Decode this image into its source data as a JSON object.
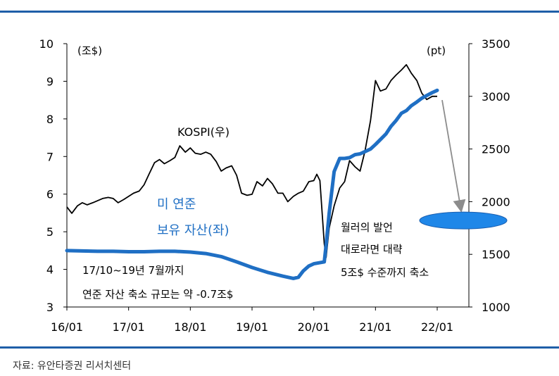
{
  "source": "자료: 유안타증권 리서치센터",
  "chart_data": {
    "type": "line",
    "x_ticks": [
      "16/01",
      "17/01",
      "18/01",
      "19/01",
      "20/01",
      "21/01",
      "22/01"
    ],
    "y_left": {
      "label": "(조$)",
      "ylim": [
        3,
        10
      ],
      "ticks": [
        3,
        4,
        5,
        6,
        7,
        8,
        9,
        10
      ]
    },
    "y_right": {
      "label": "(pt)",
      "ylim": [
        1000,
        3500
      ],
      "ticks": [
        1000,
        1500,
        2000,
        2500,
        3000,
        3500
      ]
    },
    "grid": false,
    "series": [
      {
        "name": "KOSPI(우)",
        "axis": "right",
        "color": "#000000",
        "x": [
          2016.0,
          2016.08,
          2016.17,
          2016.25,
          2016.33,
          2016.42,
          2016.5,
          2016.58,
          2016.67,
          2016.75,
          2016.83,
          2016.92,
          2017.0,
          2017.08,
          2017.17,
          2017.25,
          2017.33,
          2017.42,
          2017.5,
          2017.58,
          2017.67,
          2017.75,
          2017.83,
          2017.92,
          2018.0,
          2018.08,
          2018.17,
          2018.25,
          2018.33,
          2018.42,
          2018.5,
          2018.58,
          2018.67,
          2018.75,
          2018.83,
          2018.92,
          2019.0,
          2019.08,
          2019.17,
          2019.25,
          2019.33,
          2019.42,
          2019.5,
          2019.58,
          2019.67,
          2019.75,
          2019.83,
          2019.92,
          2020.0,
          2020.05,
          2020.1,
          2020.17,
          2020.2,
          2020.25,
          2020.33,
          2020.42,
          2020.5,
          2020.58,
          2020.67,
          2020.75,
          2020.83,
          2020.92,
          2021.0,
          2021.08,
          2021.17,
          2021.25,
          2021.33,
          2021.42,
          2021.5,
          2021.58,
          2021.67,
          2021.75,
          2021.83,
          2021.92,
          2022.0
        ],
        "values": [
          1950,
          1890,
          1960,
          1990,
          1970,
          1990,
          2010,
          2030,
          2040,
          2030,
          1990,
          2020,
          2050,
          2080,
          2100,
          2160,
          2260,
          2370,
          2400,
          2360,
          2390,
          2420,
          2530,
          2470,
          2510,
          2460,
          2450,
          2470,
          2450,
          2380,
          2290,
          2320,
          2340,
          2250,
          2080,
          2060,
          2070,
          2190,
          2150,
          2220,
          2170,
          2080,
          2080,
          2000,
          2050,
          2080,
          2100,
          2190,
          2200,
          2260,
          2200,
          1600,
          1470,
          1750,
          1960,
          2130,
          2190,
          2390,
          2330,
          2290,
          2480,
          2770,
          3150,
          3050,
          3070,
          3150,
          3200,
          3250,
          3300,
          3220,
          3150,
          3030,
          2970,
          3000,
          3000
        ]
      },
      {
        "name": "미 연준 보유 자산(좌)",
        "axis": "left",
        "color": "#1f6fc4",
        "x": [
          2016.0,
          2016.25,
          2016.5,
          2016.75,
          2017.0,
          2017.25,
          2017.5,
          2017.75,
          2018.0,
          2018.25,
          2018.5,
          2018.75,
          2019.0,
          2019.25,
          2019.5,
          2019.67,
          2019.75,
          2019.83,
          2019.92,
          2020.0,
          2020.17,
          2020.2,
          2020.25,
          2020.33,
          2020.42,
          2020.5,
          2020.58,
          2020.67,
          2020.75,
          2020.83,
          2020.92,
          2021.0,
          2021.08,
          2021.17,
          2021.25,
          2021.33,
          2021.42,
          2021.5,
          2021.58,
          2021.67,
          2021.75,
          2021.83,
          2021.92,
          2022.0
        ],
        "values": [
          4.5,
          4.49,
          4.48,
          4.48,
          4.47,
          4.47,
          4.48,
          4.48,
          4.46,
          4.42,
          4.34,
          4.2,
          4.05,
          3.92,
          3.82,
          3.76,
          3.79,
          3.96,
          4.09,
          4.15,
          4.2,
          4.65,
          5.5,
          6.6,
          6.95,
          6.95,
          6.97,
          7.05,
          7.07,
          7.13,
          7.2,
          7.32,
          7.45,
          7.6,
          7.8,
          7.95,
          8.15,
          8.22,
          8.35,
          8.45,
          8.55,
          8.62,
          8.7,
          8.76
        ]
      }
    ],
    "annotations": {
      "kospi_label": "KOSPI(우)",
      "fed_label_line1": "미 연준",
      "fed_label_line2": "보유 자산(좌)",
      "note_line1": "17/10~19년 7월까지",
      "note_line2": "연준 자산 축소 규모는 약 -0.7조$",
      "target_line1": "월러의 발언",
      "target_line2": "대로라면 대략",
      "target_line3": "5조$ 수준까지 축소"
    },
    "target_marker": {
      "value": 5.3,
      "axis": "left",
      "color": "#1f87e8"
    }
  }
}
